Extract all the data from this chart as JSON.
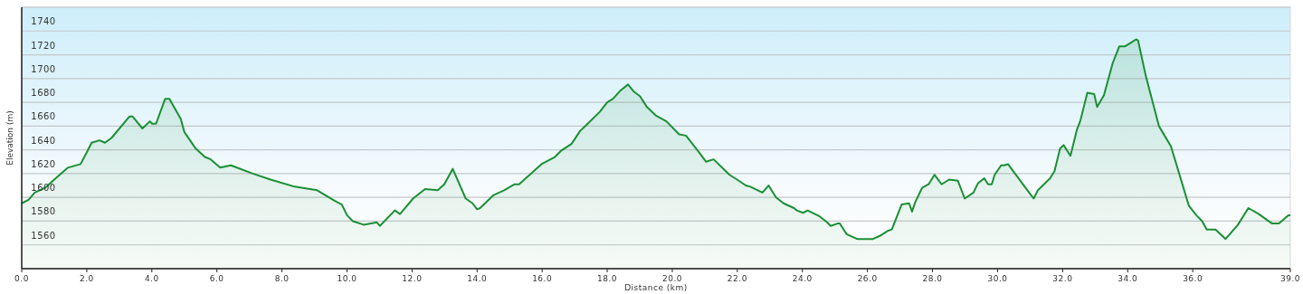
{
  "chart_data": {
    "type": "area",
    "xlabel": "Distance  (km)",
    "ylabel": "Elevation (m)",
    "xlim": [
      0,
      39
    ],
    "ylim": [
      1540,
      1760
    ],
    "xticks": [
      {
        "value": 0,
        "label": "0.0"
      },
      {
        "value": 2,
        "label": "2.0"
      },
      {
        "value": 4,
        "label": "4.0"
      },
      {
        "value": 6,
        "label": "6.0"
      },
      {
        "value": 8,
        "label": "8.0"
      },
      {
        "value": 10,
        "label": "10.0"
      },
      {
        "value": 12,
        "label": "12.0"
      },
      {
        "value": 14,
        "label": "14.0"
      },
      {
        "value": 16,
        "label": "16.0"
      },
      {
        "value": 18,
        "label": "18.0"
      },
      {
        "value": 20,
        "label": "20.0"
      },
      {
        "value": 22,
        "label": "22.0"
      },
      {
        "value": 24,
        "label": "24.0"
      },
      {
        "value": 26,
        "label": "26.0"
      },
      {
        "value": 28,
        "label": "28.0"
      },
      {
        "value": 30,
        "label": "30.0"
      },
      {
        "value": 32,
        "label": "32.0"
      },
      {
        "value": 34,
        "label": "34.0"
      },
      {
        "value": 36,
        "label": "36.0"
      },
      {
        "value": 39,
        "label": "39.0"
      }
    ],
    "yticks": [
      {
        "value": 1540,
        "label": null
      },
      1560,
      1580,
      1600,
      1620,
      1640,
      1660,
      1680,
      1700,
      1720,
      1740,
      {
        "value": 1760,
        "label": null
      }
    ],
    "grid": "y",
    "x": [
      0,
      0.21,
      0.4,
      0.72,
      1.0,
      1.42,
      1.81,
      2.02,
      2.15,
      2.39,
      2.56,
      2.76,
      3.31,
      3.41,
      3.71,
      3.94,
      4.01,
      4.13,
      4.41,
      4.54,
      4.89,
      5.0,
      5.35,
      5.63,
      5.81,
      6.1,
      6.43,
      7.1,
      7.65,
      8.39,
      9.08,
      9.63,
      9.84,
      10.0,
      10.18,
      10.51,
      10.92,
      11.01,
      11.47,
      11.63,
      12.03,
      12.4,
      12.79,
      12.99,
      13.25,
      13.65,
      13.86,
      14.0,
      14.09,
      14.51,
      14.83,
      15.15,
      15.29,
      15.98,
      16.39,
      16.57,
      16.9,
      17.17,
      17.4,
      17.77,
      18.0,
      18.18,
      18.41,
      18.64,
      18.82,
      19.01,
      19.22,
      19.49,
      19.82,
      20.21,
      20.42,
      20.79,
      21.04,
      21.27,
      21.76,
      21.99,
      22.26,
      22.4,
      22.77,
      22.96,
      23.19,
      23.42,
      23.74,
      23.83,
      24.02,
      24.16,
      24.53,
      24.76,
      24.87,
      25.08,
      25.15,
      25.36,
      25.68,
      26.0,
      26.17,
      26.41,
      26.64,
      26.75,
      27.05,
      27.28,
      27.37,
      27.47,
      27.68,
      27.88,
      28.06,
      28.28,
      28.51,
      28.78,
      28.99,
      29.26,
      29.4,
      29.59,
      29.71,
      29.82,
      29.91,
      30.11,
      30.21,
      30.32,
      30.97,
      31.11,
      31.24,
      31.61,
      31.75,
      31.92,
      32.03,
      32.24,
      32.44,
      32.55,
      32.76,
      32.97,
      33.06,
      33.27,
      33.54,
      33.74,
      33.91,
      34.09,
      34.26,
      34.32,
      34.55,
      34.96,
      35.33,
      35.88,
      36.11,
      36.29,
      36.43,
      36.7,
      37.01,
      37.39,
      37.71,
      38.03,
      38.44,
      38.65,
      38.94,
      39.0
    ],
    "series": [
      {
        "color": "#1a8f35",
        "values": [
          1595,
          1598,
          1604,
          1608,
          1615,
          1625,
          1628,
          1639,
          1646,
          1648,
          1646,
          1650,
          1668,
          1668,
          1658,
          1664,
          1662,
          1662,
          1683,
          1683,
          1666,
          1655,
          1641,
          1634,
          1632,
          1625,
          1627,
          1620,
          1615,
          1609,
          1606,
          1597,
          1594,
          1585,
          1580,
          1577,
          1579,
          1576,
          1589,
          1586,
          1599,
          1607,
          1606,
          1611,
          1624,
          1599,
          1595,
          1590,
          1591,
          1602,
          1606,
          1611,
          1611,
          1628,
          1634,
          1639,
          1645,
          1656,
          1662,
          1672,
          1680,
          1683,
          1690,
          1695,
          1689,
          1685,
          1676,
          1669,
          1664,
          1653,
          1652,
          1639,
          1630,
          1632,
          1619,
          1615,
          1610,
          1609,
          1604,
          1610,
          1600,
          1595,
          1591,
          1589,
          1587,
          1589,
          1584,
          1579,
          1576,
          1578,
          1578,
          1569,
          1565,
          1565,
          1565,
          1568,
          1572,
          1573,
          1594,
          1595,
          1588,
          1596,
          1608,
          1611,
          1619,
          1611,
          1615,
          1614,
          1599,
          1604,
          1612,
          1616,
          1611,
          1611,
          1619,
          1627,
          1627,
          1628,
          1604,
          1599,
          1606,
          1616,
          1622,
          1641,
          1644,
          1635,
          1657,
          1665,
          1688,
          1687,
          1676,
          1686,
          1713,
          1727,
          1727,
          1730,
          1733,
          1732,
          1703,
          1660,
          1643,
          1593,
          1585,
          1580,
          1573,
          1573,
          1565,
          1577,
          1591,
          1586,
          1578,
          1578,
          1585,
          1585
        ]
      }
    ]
  }
}
